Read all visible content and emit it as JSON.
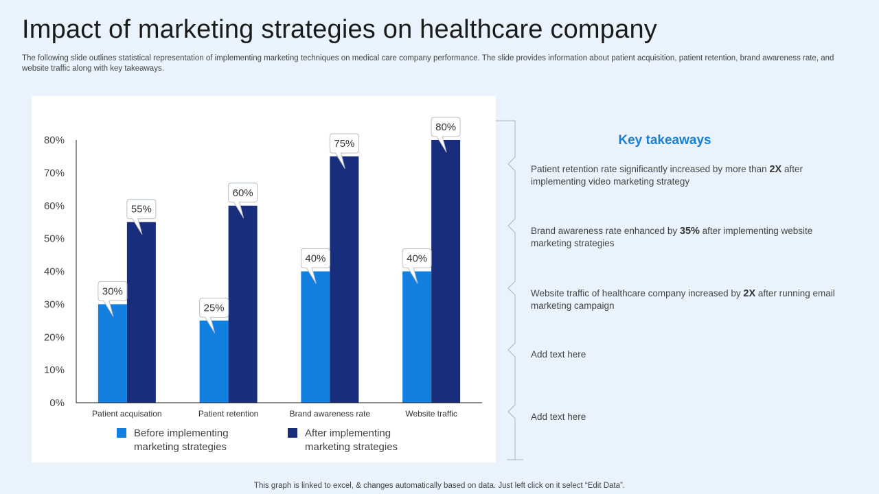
{
  "slide": {
    "title": "Impact of marketing strategies on healthcare company",
    "subtitle": "The following slide outlines statistical representation of implementing marketing techniques on medical care company performance. The slide provides information about patient acquisition, patient retention, brand awareness rate, and website traffic along with key takeaways.",
    "footer": "This graph is linked to excel, & changes automatically based on data. Just left click on it select “Edit Data”."
  },
  "chart_data": {
    "type": "bar",
    "categories": [
      "Patient acquisation",
      "Patient retention",
      "Brand awareness rate",
      "Website traffic"
    ],
    "series": [
      {
        "name": "Before implementing marketing strategies",
        "values": [
          30,
          25,
          40,
          40
        ],
        "color": "#1380e0"
      },
      {
        "name": "After implementing marketing strategies",
        "values": [
          55,
          60,
          75,
          80
        ],
        "color": "#182d7c"
      }
    ],
    "y_ticks": [
      "0%",
      "10%",
      "20%",
      "30%",
      "40%",
      "50%",
      "60%",
      "70%",
      "80%"
    ],
    "ylim": [
      0,
      80
    ],
    "value_suffix": "%",
    "grid": false,
    "legend_position": "bottom",
    "data_labels": "callouts"
  },
  "legend": {
    "before": {
      "line1": "Before implementing",
      "line2": "marketing strategies",
      "color": "#1380e0"
    },
    "after": {
      "line1": "After implementing",
      "line2": "marketing strategies",
      "color": "#182d7c"
    }
  },
  "takeaways": {
    "title": "Key takeaways",
    "items": [
      {
        "pre": "Patient retention rate significantly increased by more than ",
        "bold": "2X",
        "post": " after implementing video marketing strategy"
      },
      {
        "pre": "Brand awareness rate enhanced by ",
        "bold": "35%",
        "post": " after implementing website marketing strategies"
      },
      {
        "pre": "Website traffic of healthcare company increased by ",
        "bold": "2X",
        "post": " after running email marketing campaign"
      },
      {
        "pre": "Add text here",
        "bold": "",
        "post": ""
      },
      {
        "pre": "Add text here",
        "bold": "",
        "post": ""
      }
    ]
  }
}
